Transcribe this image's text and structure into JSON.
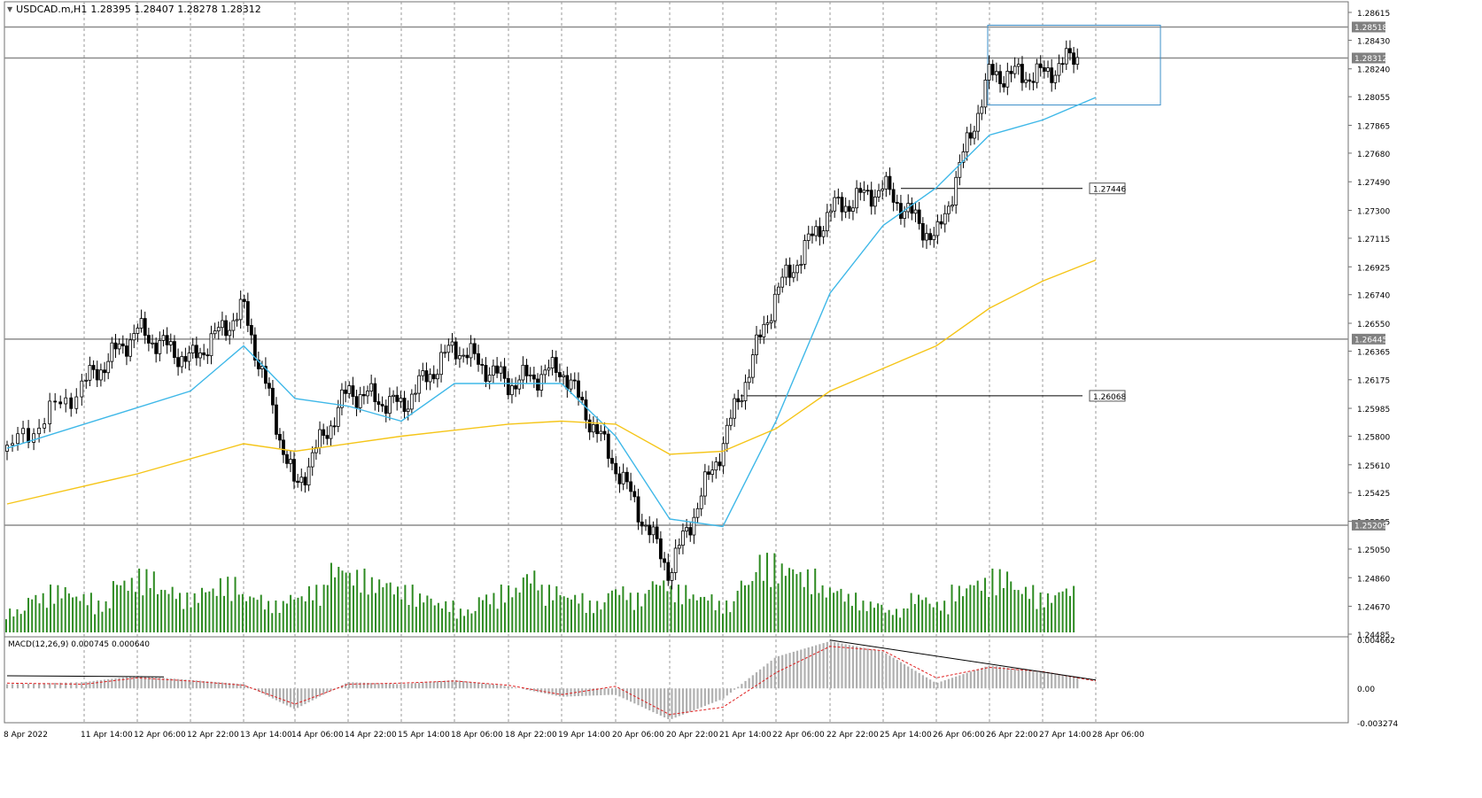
{
  "header": {
    "symbol": "USDCAD.m,H1",
    "ohlc": "1.28395 1.28407 1.28278 1.28312"
  },
  "colors": {
    "background": "#ffffff",
    "grid": "#9a9a9a",
    "candle": "#000000",
    "volume": "#2e8b22",
    "ma_fast": "#3fb8e8",
    "ma_slow": "#f5c518",
    "hline": "#8c8c8c",
    "box": "#3b8fc9",
    "macd_hist": "#b0b0b0",
    "macd_signal": "#e02020"
  },
  "chart_data": [
    {
      "type": "candlestick",
      "title": "USDCAD.m,H1",
      "ohlc_last": {
        "open": 1.28395,
        "high": 1.28407,
        "low": 1.28278,
        "close": 1.28312
      },
      "ylim": [
        1.24485,
        1.28615
      ],
      "y_ticks": [
        "1.28615",
        "1.28430",
        "1.28240",
        "1.28055",
        "1.27865",
        "1.27680",
        "1.27490",
        "1.27300",
        "1.27115",
        "1.26925",
        "1.26740",
        "1.26550",
        "1.26365",
        "1.26175",
        "1.25985",
        "1.25800",
        "1.25610",
        "1.25425",
        "1.25235",
        "1.25050",
        "1.24860",
        "1.24670",
        "1.24485"
      ],
      "x_ticks": [
        "8 Apr 2022",
        "11 Apr 14:00",
        "12 Apr 06:00",
        "12 Apr 22:00",
        "13 Apr 14:00",
        "14 Apr 06:00",
        "14 Apr 22:00",
        "15 Apr 14:00",
        "18 Apr 06:00",
        "18 Apr 22:00",
        "19 Apr 14:00",
        "20 Apr 06:00",
        "20 Apr 22:00",
        "21 Apr 14:00",
        "22 Apr 06:00",
        "22 Apr 22:00",
        "25 Apr 14:00",
        "26 Apr 06:00",
        "26 Apr 22:00",
        "27 Apr 14:00",
        "28 Apr 06:00"
      ],
      "key_points": [
        {
          "label": "8 Apr 2022",
          "close": 1.257
        },
        {
          "label": "11 Apr 14:00",
          "close": 1.2615
        },
        {
          "label": "12 Apr 06:00",
          "close": 1.265
        },
        {
          "label": "12 Apr 22:00",
          "close": 1.263
        },
        {
          "label": "13 Apr 14:00",
          "close": 1.2665
        },
        {
          "label": "14 Apr 06:00",
          "close": 1.2545
        },
        {
          "label": "14 Apr 22:00",
          "close": 1.261
        },
        {
          "label": "15 Apr 14:00",
          "close": 1.26
        },
        {
          "label": "18 Apr 06:00",
          "close": 1.264
        },
        {
          "label": "18 Apr 22:00",
          "close": 1.2615
        },
        {
          "label": "19 Apr 14:00",
          "close": 1.2625
        },
        {
          "label": "20 Apr 06:00",
          "close": 1.256
        },
        {
          "label": "20 Apr 22:00",
          "close": 1.249
        },
        {
          "label": "21 Apr 14:00",
          "close": 1.2575
        },
        {
          "label": "22 Apr 06:00",
          "close": 1.2675
        },
        {
          "label": "22 Apr 22:00",
          "close": 1.273
        },
        {
          "label": "25 Apr 14:00",
          "close": 1.2745
        },
        {
          "label": "26 Apr 06:00",
          "close": 1.271
        },
        {
          "label": "26 Apr 22:00",
          "close": 1.282
        },
        {
          "label": "27 Apr 14:00",
          "close": 1.282
        },
        {
          "label": "28 Apr 06:00",
          "close": 1.284
        }
      ],
      "moving_averages": [
        {
          "name": "MA fast",
          "color": "#3fb8e8",
          "points": [
            [
              0,
              1.2572
            ],
            [
              3,
              1.261
            ],
            [
              4,
              1.264
            ],
            [
              5,
              1.2605
            ],
            [
              6,
              1.26
            ],
            [
              7,
              1.259
            ],
            [
              8,
              1.2615
            ],
            [
              9,
              1.2615
            ],
            [
              10,
              1.2615
            ],
            [
              11,
              1.258
            ],
            [
              12,
              1.2525
            ],
            [
              13,
              1.252
            ],
            [
              14,
              1.259
            ],
            [
              15,
              1.2675
            ],
            [
              16,
              1.272
            ],
            [
              17,
              1.2745
            ],
            [
              18,
              1.278
            ],
            [
              19,
              1.279
            ],
            [
              20,
              1.2805
            ]
          ]
        },
        {
          "name": "MA slow",
          "color": "#f5c518",
          "points": [
            [
              0,
              1.2535
            ],
            [
              2,
              1.2555
            ],
            [
              4,
              1.2575
            ],
            [
              5,
              1.257
            ],
            [
              7,
              1.258
            ],
            [
              9,
              1.2588
            ],
            [
              10,
              1.259
            ],
            [
              11,
              1.2588
            ],
            [
              12,
              1.2568
            ],
            [
              13,
              1.257
            ],
            [
              14,
              1.2585
            ],
            [
              15,
              1.261
            ],
            [
              16,
              1.2625
            ],
            [
              17,
              1.264
            ],
            [
              18,
              1.2665
            ],
            [
              19,
              1.2683
            ],
            [
              20,
              1.2697
            ]
          ]
        }
      ],
      "horizontal_lines": [
        {
          "price": 1.28518,
          "label": "1.28518"
        },
        {
          "price": 1.28312,
          "label": "1.28312"
        },
        {
          "price": 1.26445,
          "label": "1.26445"
        },
        {
          "price": 1.25209,
          "label": "1.25209"
        }
      ],
      "trendlines": [
        {
          "price": 1.27446,
          "label": "1.27446",
          "from": "25 Apr 14:00",
          "to": "28 Apr 06:00"
        },
        {
          "price": 1.26068,
          "label": "1.26068",
          "from": "21 Apr 14:00",
          "to": "28 Apr 06:00"
        }
      ],
      "rectangle": {
        "from": "26 Apr 22:00",
        "to": "28 Apr 06:00",
        "price_top": 1.2853,
        "price_bottom": 1.28
      },
      "grid": true
    },
    {
      "type": "bar",
      "title": "",
      "series": [
        {
          "name": "",
          "values_relative": [
            0.3,
            0.5,
            0.6,
            0.5,
            0.4,
            0.7,
            0.8,
            0.6,
            0.5,
            0.6,
            0.7,
            0.5,
            0.4,
            0.5,
            0.6,
            0.9,
            0.8,
            0.7,
            0.6,
            0.5,
            0.4,
            0.3,
            0.5,
            0.6,
            0.8,
            0.6,
            0.5,
            0.4,
            0.6,
            0.5,
            0.7,
            0.6,
            0.5,
            0.4,
            0.7,
            1.0,
            0.9,
            0.8,
            0.6,
            0.5,
            0.4,
            0.3,
            0.5,
            0.4,
            0.6,
            0.7,
            0.8,
            0.6,
            0.5,
            0.6
          ]
        }
      ]
    },
    {
      "type": "bar",
      "title": "MACD(12,26,9) 0.000745 0.000640",
      "ylim": [
        -0.003274,
        0.004662
      ],
      "y_ticks": [
        "0.004662",
        "0.00",
        "-0.003274"
      ],
      "series": [
        {
          "name": "histogram",
          "points": [
            [
              0,
              0.0004
            ],
            [
              1,
              0.0006
            ],
            [
              2,
              0.0012
            ],
            [
              3,
              0.0008
            ],
            [
              4,
              0.0004
            ],
            [
              5,
              -0.002
            ],
            [
              6,
              0.0006
            ],
            [
              7,
              0.0004
            ],
            [
              8,
              0.0008
            ],
            [
              9,
              0.0002
            ],
            [
              10,
              -0.0008
            ],
            [
              11,
              -0.0006
            ],
            [
              12,
              -0.003
            ],
            [
              13,
              -0.001
            ],
            [
              14,
              0.003
            ],
            [
              15,
              0.0045
            ],
            [
              16,
              0.0035
            ],
            [
              17,
              0.0005
            ],
            [
              18,
              0.0022
            ],
            [
              19,
              0.0015
            ],
            [
              20,
              0.0008
            ]
          ]
        },
        {
          "name": "signal",
          "points": [
            [
              0,
              0.0005
            ],
            [
              1,
              0.0004
            ],
            [
              2,
              0.001
            ],
            [
              3,
              0.0007
            ],
            [
              4,
              0.0003
            ],
            [
              5,
              -0.0015
            ],
            [
              6,
              0.0004
            ],
            [
              7,
              0.0005
            ],
            [
              8,
              0.0007
            ],
            [
              9,
              0.0003
            ],
            [
              10,
              -0.0006
            ],
            [
              11,
              0.0002
            ],
            [
              12,
              -0.0025
            ],
            [
              13,
              -0.0018
            ],
            [
              14,
              0.0015
            ],
            [
              15,
              0.004
            ],
            [
              16,
              0.0036
            ],
            [
              17,
              0.001
            ],
            [
              18,
              0.002
            ],
            [
              19,
              0.0016
            ],
            [
              20,
              0.0007
            ]
          ]
        }
      ],
      "trendlines": [
        {
          "from_index": 0,
          "to_index": 2.5,
          "value_from": 0.0012,
          "value_to": 0.0011
        },
        {
          "from_index": 15,
          "to_index": 20,
          "value_from": 0.0046,
          "value_to": 0.0008
        }
      ]
    }
  ]
}
